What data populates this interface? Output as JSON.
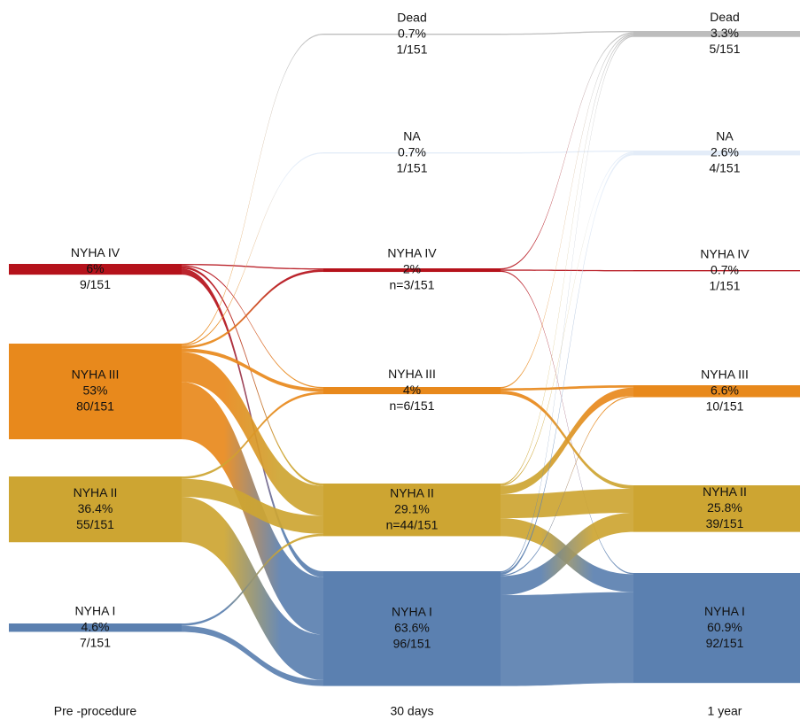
{
  "chart_data": {
    "type": "sankey",
    "colors": {
      "Dead": "#bdbdbd",
      "NA": "#e3ecf8",
      "NYHA IV": "#b5121b",
      "NYHA III": "#e8891c",
      "NYHA II": "#cda532",
      "NYHA I": "#5b80b0"
    },
    "stages": [
      {
        "name": "Pre -procedure",
        "nodes": [
          {
            "name": "NYHA IV",
            "value": 9,
            "value_labels": [
              "6%",
              "9/151"
            ]
          },
          {
            "name": "NYHA III",
            "value": 80,
            "value_labels": [
              "53%",
              "80/151"
            ]
          },
          {
            "name": "NYHA II",
            "value": 55,
            "value_labels": [
              "36.4%",
              "55/151"
            ]
          },
          {
            "name": "NYHA I",
            "value": 7,
            "value_labels": [
              "4.6%",
              "7/151"
            ]
          }
        ]
      },
      {
        "name": "30 days",
        "nodes": [
          {
            "name": "Dead",
            "value": 1,
            "value_labels": [
              "0.7%",
              "1/151"
            ]
          },
          {
            "name": "NA",
            "value": 1,
            "value_labels": [
              "0.7%",
              "1/151"
            ]
          },
          {
            "name": "NYHA IV",
            "value": 3,
            "value_labels": [
              "2%",
              "n=3/151"
            ]
          },
          {
            "name": "NYHA III",
            "value": 6,
            "value_labels": [
              "4%",
              "n=6/151"
            ]
          },
          {
            "name": "NYHA II",
            "value": 44,
            "value_labels": [
              "29.1%",
              "n=44/151"
            ]
          },
          {
            "name": "NYHA I",
            "value": 96,
            "value_labels": [
              "63.6%",
              "96/151"
            ]
          }
        ]
      },
      {
        "name": "1 year",
        "nodes": [
          {
            "name": "Dead",
            "value": 5,
            "value_labels": [
              "3.3%",
              "5/151"
            ]
          },
          {
            "name": "NA",
            "value": 4,
            "value_labels": [
              "2.6%",
              "4/151"
            ]
          },
          {
            "name": "NYHA IV",
            "value": 1,
            "value_labels": [
              "0.7%",
              "1/151"
            ]
          },
          {
            "name": "NYHA III",
            "value": 10,
            "value_labels": [
              "6.6%",
              "10/151"
            ]
          },
          {
            "name": "NYHA II",
            "value": 39,
            "value_labels": [
              "25.8%",
              "39/151"
            ]
          },
          {
            "name": "NYHA I",
            "value": 92,
            "value_labels": [
              "60.9%",
              "92/151"
            ]
          }
        ]
      }
    ],
    "flows": [
      [
        {
          "source": "NYHA IV",
          "target": "NYHA IV",
          "value": 1
        },
        {
          "source": "NYHA IV",
          "target": "NYHA III",
          "value": 1
        },
        {
          "source": "NYHA IV",
          "target": "NYHA II",
          "value": 2
        },
        {
          "source": "NYHA IV",
          "target": "NYHA I",
          "value": 5
        },
        {
          "source": "NYHA III",
          "target": "Dead",
          "value": 1
        },
        {
          "source": "NYHA III",
          "target": "NA",
          "value": 1
        },
        {
          "source": "NYHA III",
          "target": "NYHA IV",
          "value": 2
        },
        {
          "source": "NYHA III",
          "target": "NYHA III",
          "value": 3
        },
        {
          "source": "NYHA III",
          "target": "NYHA II",
          "value": 25
        },
        {
          "source": "NYHA III",
          "target": "NYHA I",
          "value": 48
        },
        {
          "source": "NYHA II",
          "target": "NYHA III",
          "value": 2
        },
        {
          "source": "NYHA II",
          "target": "NYHA II",
          "value": 15
        },
        {
          "source": "NYHA II",
          "target": "NYHA I",
          "value": 38
        },
        {
          "source": "NYHA I",
          "target": "NYHA II",
          "value": 2
        },
        {
          "source": "NYHA I",
          "target": "NYHA I",
          "value": 5
        }
      ],
      [
        {
          "source": "Dead",
          "target": "Dead",
          "value": 1
        },
        {
          "source": "NA",
          "target": "NA",
          "value": 1
        },
        {
          "source": "NYHA IV",
          "target": "Dead",
          "value": 1
        },
        {
          "source": "NYHA IV",
          "target": "NYHA IV",
          "value": 1
        },
        {
          "source": "NYHA IV",
          "target": "NYHA I",
          "value": 1
        },
        {
          "source": "NYHA III",
          "target": "Dead",
          "value": 1
        },
        {
          "source": "NYHA III",
          "target": "NYHA III",
          "value": 2
        },
        {
          "source": "NYHA III",
          "target": "NYHA II",
          "value": 3
        },
        {
          "source": "NYHA II",
          "target": "Dead",
          "value": 1
        },
        {
          "source": "NYHA II",
          "target": "NA",
          "value": 1
        },
        {
          "source": "NYHA II",
          "target": "NYHA III",
          "value": 7
        },
        {
          "source": "NYHA II",
          "target": "NYHA II",
          "value": 20
        },
        {
          "source": "NYHA II",
          "target": "NYHA I",
          "value": 15
        },
        {
          "source": "NYHA I",
          "target": "Dead",
          "value": 1
        },
        {
          "source": "NYHA I",
          "target": "NA",
          "value": 2
        },
        {
          "source": "NYHA I",
          "target": "NYHA III",
          "value": 1
        },
        {
          "source": "NYHA I",
          "target": "NYHA II",
          "value": 16
        },
        {
          "source": "NYHA I",
          "target": "NYHA I",
          "value": 76
        }
      ]
    ]
  }
}
